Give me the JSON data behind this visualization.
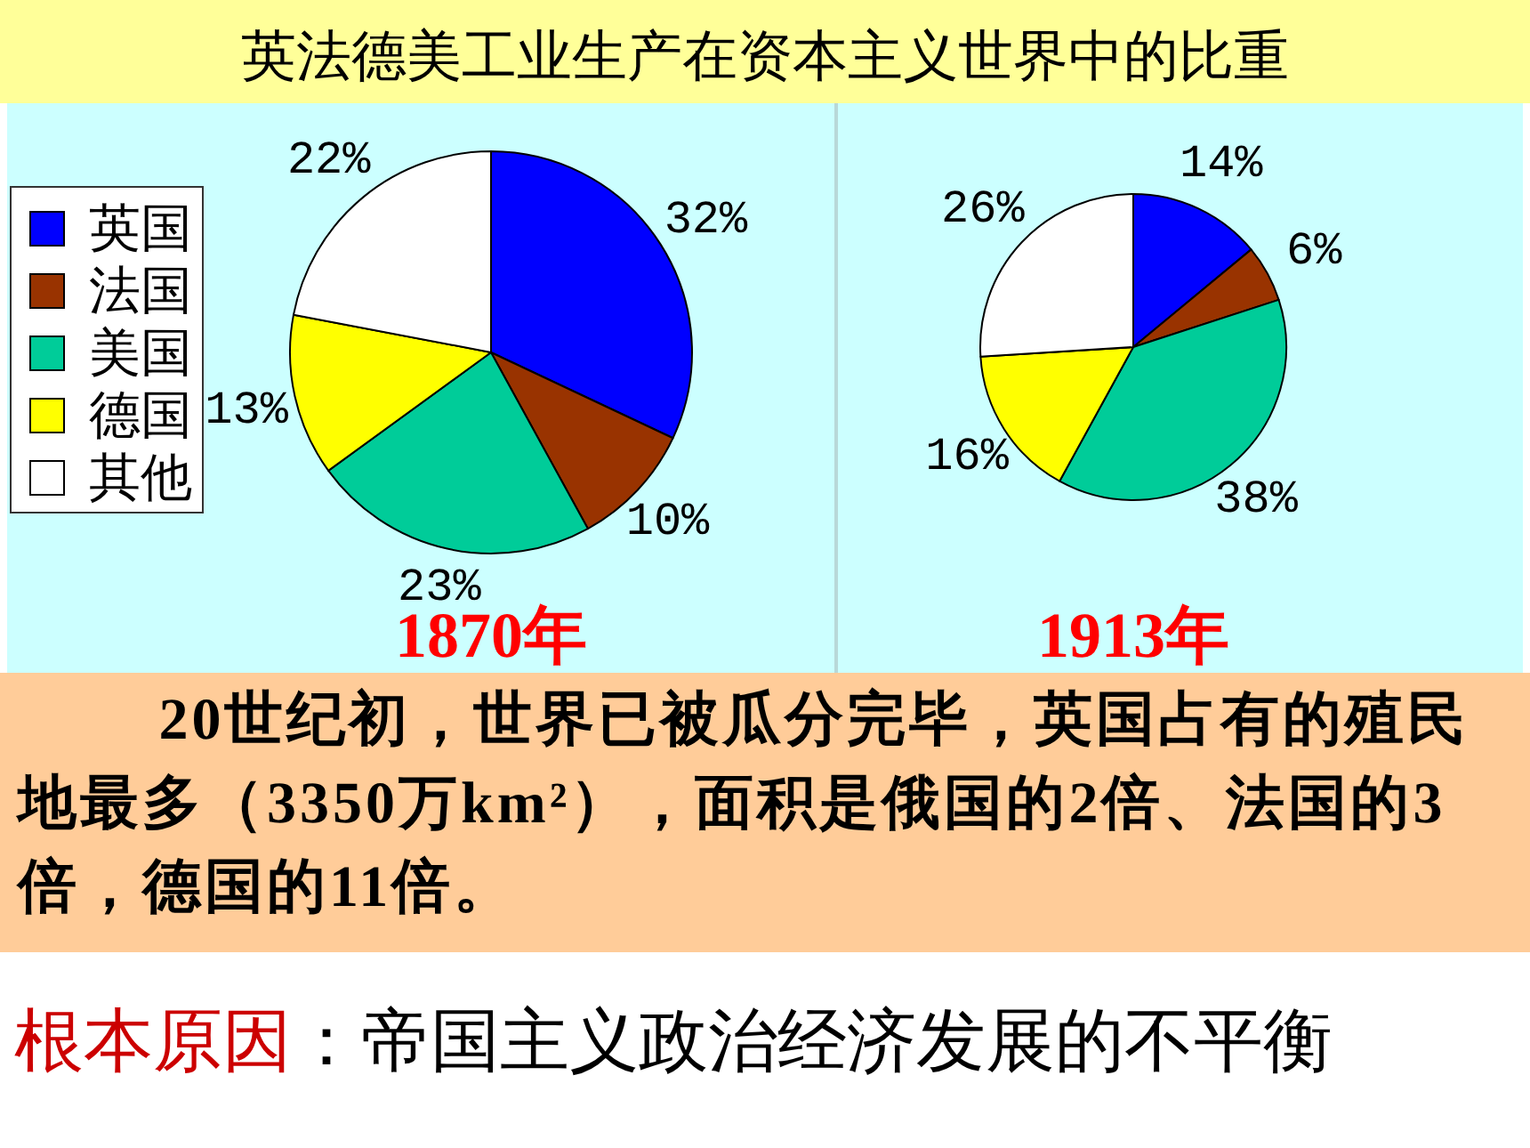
{
  "chart_data": [
    {
      "type": "pie",
      "title": "英法德美工业生产在资本主义世界中的比重",
      "xlabel": "1870年",
      "categories": [
        "英国",
        "法国",
        "美国",
        "德国",
        "其他"
      ],
      "values": [
        32,
        10,
        23,
        13,
        22
      ],
      "value_labels": [
        "32%",
        "10%",
        "23%",
        "13%",
        "22%"
      ],
      "colors": [
        "#0000ff",
        "#993300",
        "#00cc99",
        "#ffff00",
        "#ffffff"
      ],
      "legend": "left",
      "annotations": [
        "20世纪初，世界已被瓜分完毕，英国占有的殖民地最多（3350万km²），面积是俄国的2倍、法国的3倍，德国的11倍。",
        "根本原因",
        "：帝国主义政治经济发展的不平衡"
      ]
    },
    {
      "type": "pie",
      "xlabel": "1913年",
      "categories": [
        null,
        null,
        null,
        null,
        null
      ],
      "values": [
        14,
        6,
        38,
        16,
        26
      ],
      "value_labels": [
        "14%",
        "6%",
        "38%",
        "16%",
        "26%"
      ],
      "colors": [
        "#0000ff",
        "#993300",
        "#00cc99",
        "#ffff00",
        "#ffffff"
      ]
    }
  ]
}
